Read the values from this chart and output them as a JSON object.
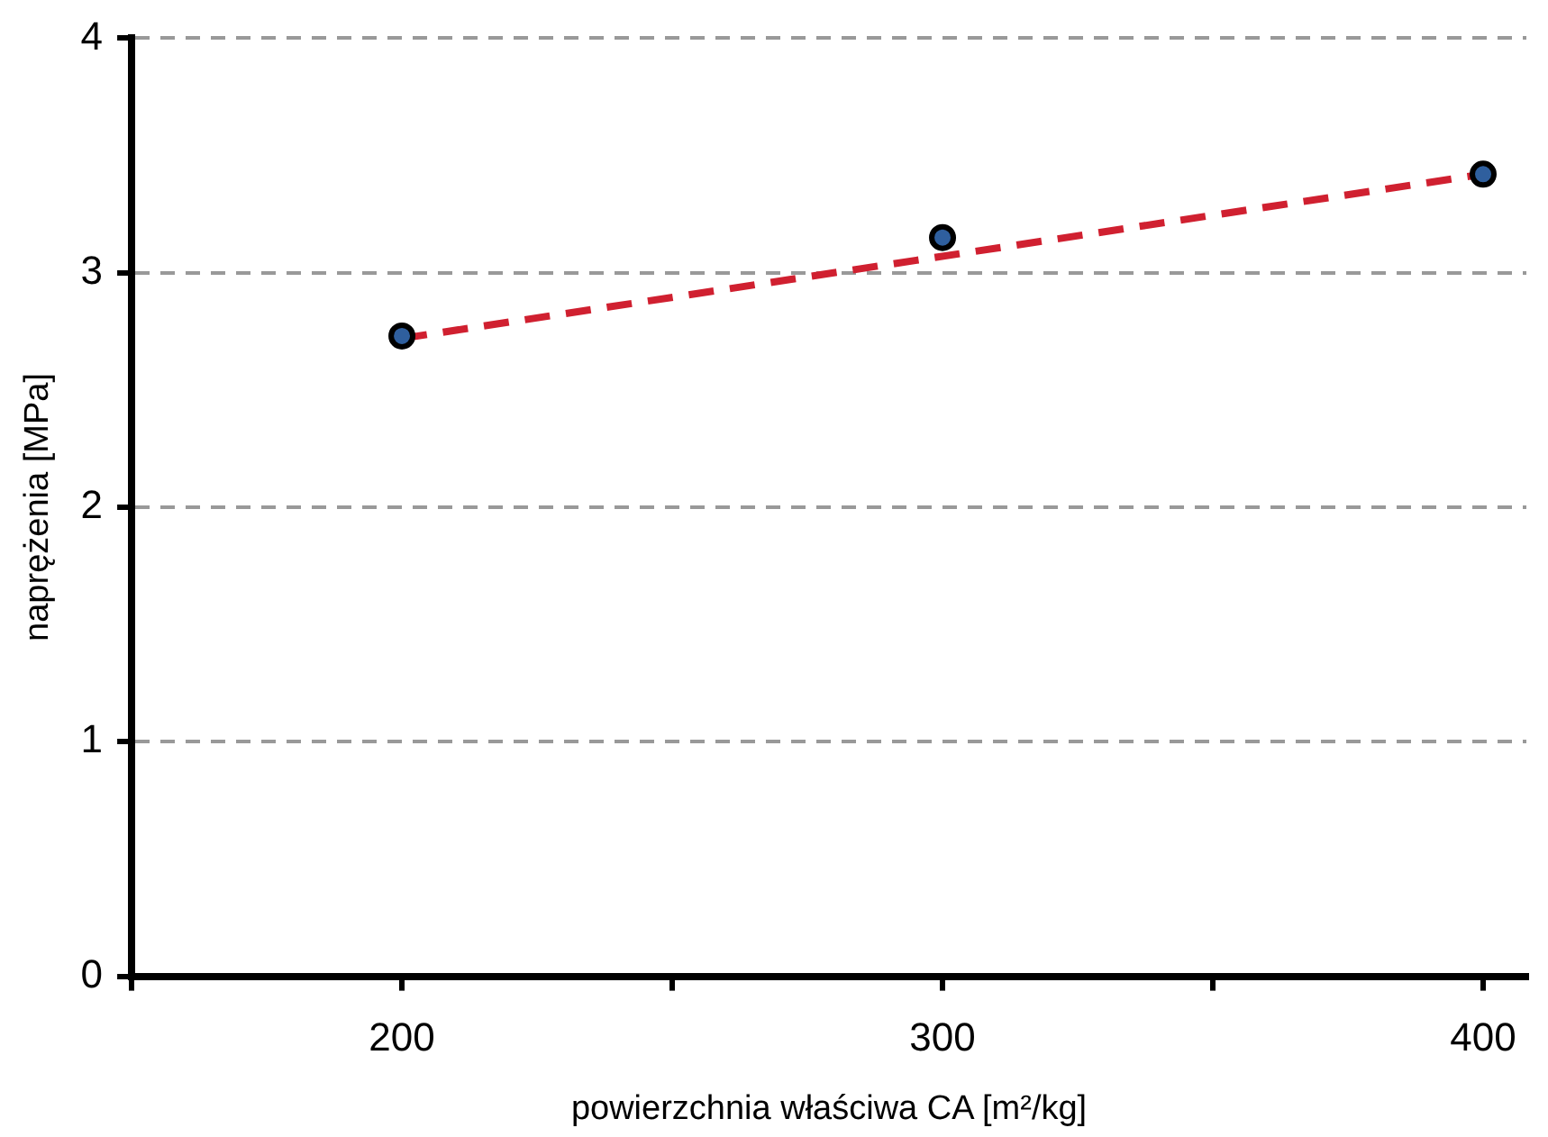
{
  "chart_data": {
    "type": "scatter",
    "xlabel": "powierzchnia właściwa CA [m²/kg]",
    "ylabel": "naprężenia [MPa]",
    "x": [
      200,
      300,
      400
    ],
    "series": [
      {
        "type": "scatter",
        "color": "#2f5f9e",
        "values": [
          2.73,
          3.15,
          3.42
        ],
        "marker": "circle"
      },
      {
        "type": "line",
        "color": "#d02030",
        "x": [
          200,
          400
        ],
        "values": [
          2.72,
          3.42
        ],
        "line_style": "dashed",
        "marker": "none"
      }
    ],
    "xlim": [
      150,
      408
    ],
    "xticks": [
      {
        "value": 150,
        "label": null
      },
      200,
      {
        "value": 250,
        "label": null
      },
      300,
      {
        "value": 350,
        "label": null
      },
      400
    ],
    "ylim": [
      0,
      4
    ],
    "yticks": [
      0,
      1,
      2,
      3,
      4
    ],
    "grid": "y",
    "legend": false
  }
}
